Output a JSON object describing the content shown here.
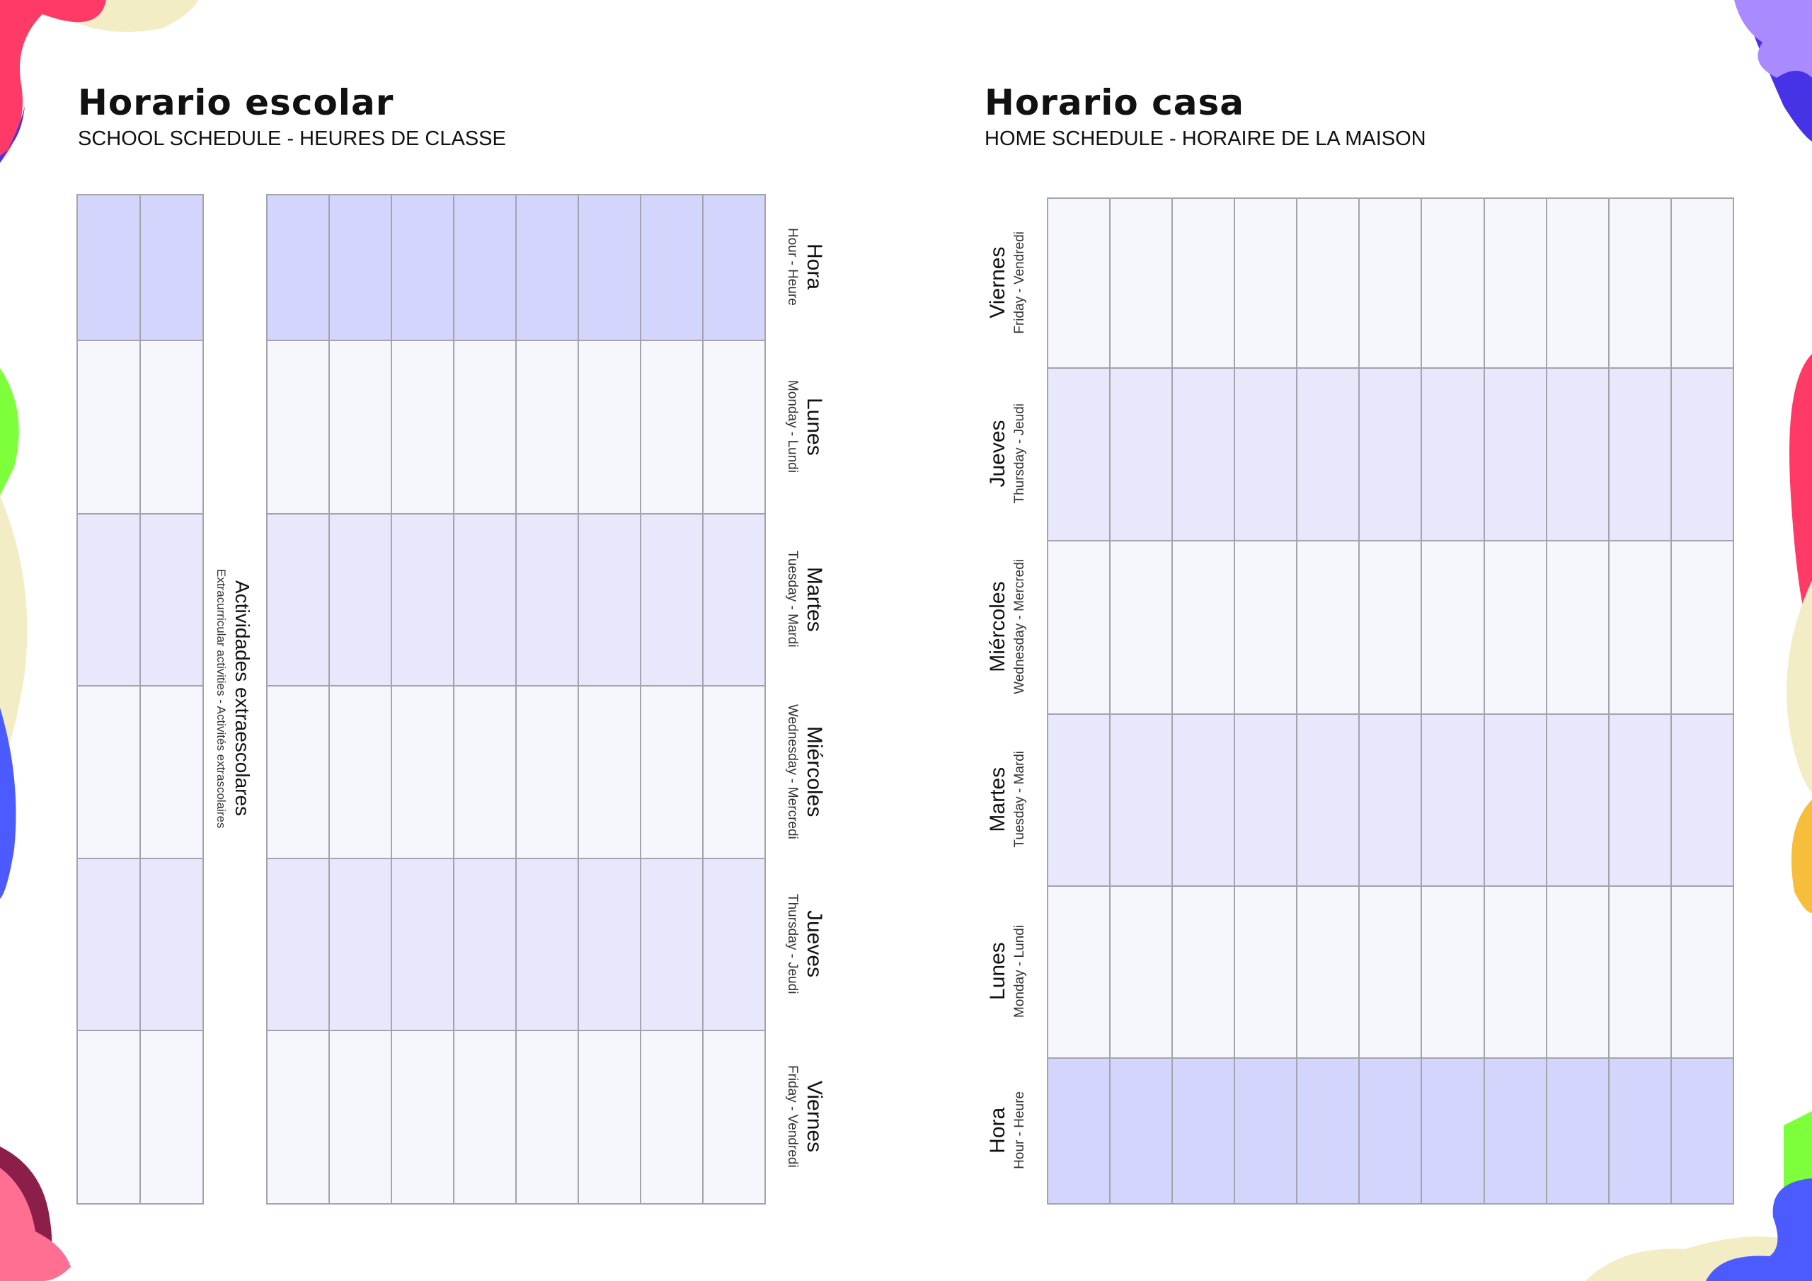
{
  "colors": {
    "header_row": "#d4d5fc",
    "light_row": "#f6f6fd",
    "medium_row": "#e7e8fc",
    "grid_line": "#a4a4ad"
  },
  "school": {
    "title": "Horario escolar",
    "subtitle": "SCHOOL SCHEDULE - HEURES DE CLASSE",
    "extracurricular": {
      "label": "Actividades extraescolares",
      "sub": "Extracurricular activities - Activités extrascolaires"
    },
    "rows": [
      {
        "label": "Hora",
        "sub": "Hour - Heure"
      },
      {
        "label": "Lunes",
        "sub": "Monday - Lundi"
      },
      {
        "label": "Martes",
        "sub": "Tuesday - Mardi"
      },
      {
        "label": "Miércoles",
        "sub": "Wednesday - Mercredi"
      },
      {
        "label": "Jueves",
        "sub": "Thursday - Jeudi"
      },
      {
        "label": "Viernes",
        "sub": "Friday - Vendredi"
      }
    ]
  },
  "home": {
    "title": "Horario casa",
    "subtitle": "HOME SCHEDULE - HORAIRE DE LA MAISON",
    "rows": [
      {
        "label": "Viernes",
        "sub": "Friday - Vendredi"
      },
      {
        "label": "Jueves",
        "sub": "Thursday - Jeudi"
      },
      {
        "label": "Miércoles",
        "sub": "Wednesday - Mercredi"
      },
      {
        "label": "Martes",
        "sub": "Tuesday - Mardi"
      },
      {
        "label": "Lunes",
        "sub": "Monday - Lundi"
      },
      {
        "label": "Hora",
        "sub": "Hour - Heure"
      }
    ]
  }
}
